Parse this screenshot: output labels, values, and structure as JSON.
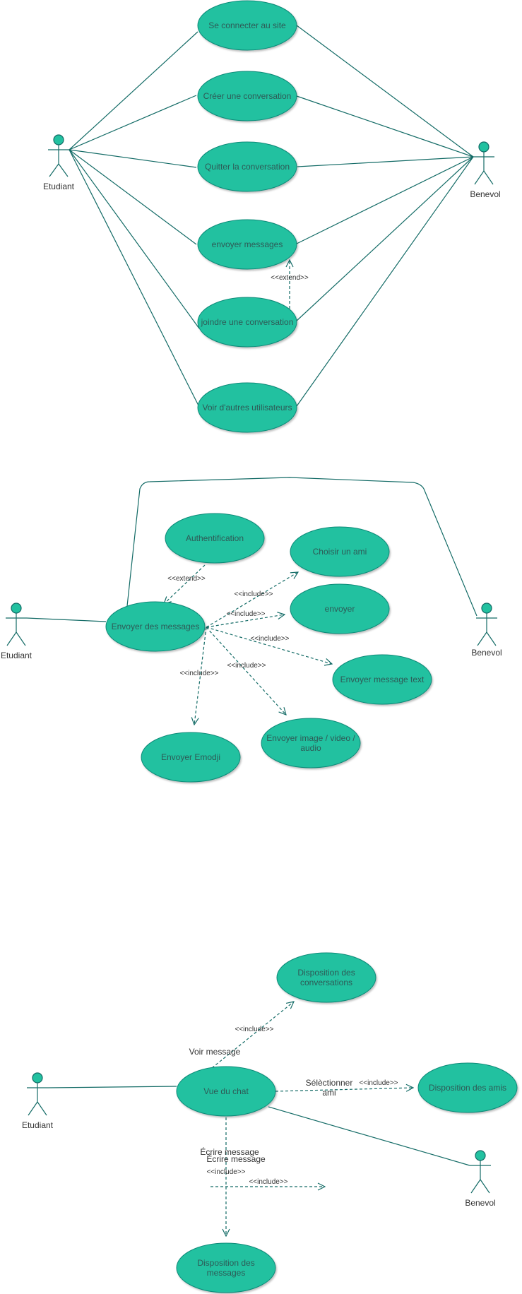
{
  "diagram1": {
    "actors": {
      "etudiant": "Etudiant",
      "benevol": "Benevol"
    },
    "use_cases": {
      "se_connecter": "Se connecter au site",
      "creer_conversation": "Créer une conversation",
      "quitter_conversation": "Quitter la conversation",
      "envoyer_messages": "envoyer messages",
      "joindre_conversation": "joindre une conversation",
      "voir_utilisateurs": "Voir d'autres utilisateurs"
    },
    "stereotypes": {
      "extend": "<<extend>>"
    }
  },
  "diagram2": {
    "actors": {
      "etudiant": "Etudiant",
      "benevol": "Benevol"
    },
    "use_cases": {
      "authentification": "Authentification",
      "choisir_ami": "Choisir un ami",
      "envoyer_des_messages": "Envoyer des messages",
      "envoyer": "envoyer",
      "envoyer_message_text": "Envoyer message text",
      "envoyer_image_line1": "Envoyer image / video /",
      "envoyer_image_line2": "audio",
      "envoyer_emodji": "Envoyer Emodji"
    },
    "stereotypes": {
      "extend": "<<extend>>",
      "include_choisir": "<<include>>",
      "include_envoyer": "<<include>>",
      "include_text": "<<include>>",
      "include_image": "<<include>>",
      "include_emodji": "<<include>>"
    }
  },
  "diagram3": {
    "actors": {
      "etudiant": "Etudiant",
      "benevol": "Benevol"
    },
    "use_cases": {
      "disposition_conversations_line1": "Disposition des",
      "disposition_conversations_line2": "conversations",
      "vue_du_chat": "Vue du chat",
      "disposition_amis": "Disposition des amis",
      "disposition_messages_line1": "Disposition des",
      "disposition_messages_line2": "messages"
    },
    "edge_labels": {
      "voir_message": "Voir message",
      "selectionner_line1": "Sélèctionner",
      "selectionner_line2": "ami",
      "ecrire_message_1": "Écrire message",
      "ecrire_message_2": "Écrire message"
    },
    "stereotypes": {
      "include_conversations": "<<include>>",
      "include_amis": "<<include>>",
      "include_messages": "<<include>>",
      "include_floating": "<<include>>"
    }
  },
  "colors": {
    "use_case_fill": "#22c1a0",
    "line": "#136b66"
  }
}
